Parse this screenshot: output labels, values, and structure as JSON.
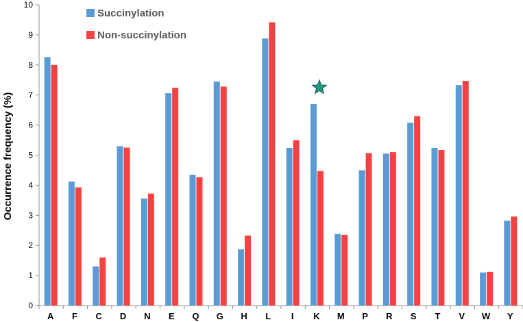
{
  "chart_data": {
    "type": "bar",
    "title": "",
    "xlabel": "",
    "ylabel": "Occurrence frequency (%)",
    "ylim": [
      0,
      10
    ],
    "yticks": [
      0,
      1,
      2,
      3,
      4,
      5,
      6,
      7,
      8,
      9,
      10
    ],
    "grid": false,
    "legend_position": "top-left",
    "categories": [
      "A",
      "F",
      "C",
      "D",
      "N",
      "E",
      "Q",
      "G",
      "H",
      "L",
      "I",
      "K",
      "M",
      "P",
      "R",
      "S",
      "T",
      "V",
      "W",
      "Y"
    ],
    "series": [
      {
        "name": "Succinylation",
        "color": "#5B9BD5",
        "values": [
          8.26,
          4.12,
          1.3,
          5.3,
          3.56,
          7.06,
          4.35,
          7.45,
          1.87,
          8.88,
          5.24,
          6.7,
          2.38,
          4.5,
          5.05,
          6.08,
          5.24,
          7.33,
          1.1,
          2.82
        ]
      },
      {
        "name": "Non-succinylation",
        "color": "#F44242",
        "values": [
          8.0,
          3.93,
          1.6,
          5.25,
          3.72,
          7.24,
          4.27,
          7.28,
          2.33,
          9.42,
          5.5,
          4.47,
          2.35,
          5.07,
          5.1,
          6.3,
          5.17,
          7.47,
          1.12,
          2.96
        ]
      }
    ],
    "annotations": [
      {
        "type": "star-marker",
        "category": "K",
        "y": 7.25,
        "color": "#1E9E6E",
        "stroke": "#1B4F8F"
      }
    ]
  }
}
